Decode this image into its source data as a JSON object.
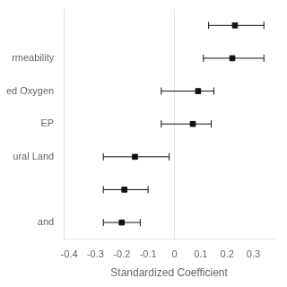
{
  "chart_data": {
    "type": "scatter",
    "orientation": "horizontal",
    "xlabel": "Standardized Coefficient",
    "categories": [
      null,
      "rmeability",
      "ed Oxygen",
      "EP",
      "ural Land",
      null,
      "and"
    ],
    "values": [
      0.23,
      0.22,
      0.09,
      0.07,
      -0.15,
      -0.19,
      -0.2
    ],
    "ci_low": [
      0.13,
      0.11,
      -0.05,
      -0.05,
      -0.27,
      -0.27,
      -0.27
    ],
    "ci_high": [
      0.34,
      0.34,
      0.15,
      0.14,
      -0.02,
      -0.1,
      -0.13
    ],
    "xlim": [
      -0.42,
      0.38
    ],
    "xticks": [
      -0.4,
      -0.3,
      -0.2,
      -0.1,
      0,
      0.1,
      0.2,
      0.3
    ],
    "vline": 0,
    "color": "#111111",
    "marker": "square",
    "grid": false
  }
}
